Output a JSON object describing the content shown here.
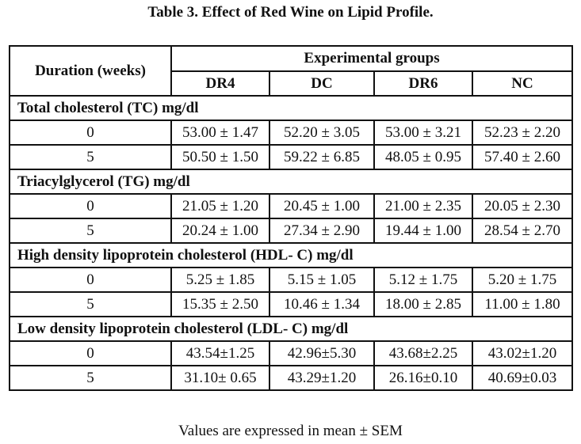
{
  "title": "Table 3. Effect of Red Wine on Lipid Profile.",
  "header": {
    "duration_label": "Duration (weeks)",
    "groups_label": "Experimental groups",
    "columns": [
      "DR4",
      "DC",
      "DR6",
      "NC"
    ]
  },
  "sections": [
    {
      "label": "Total cholesterol (TC) mg/dl",
      "rows": [
        {
          "duration": "0",
          "values": [
            "53.00 ± 1.47",
            "52.20 ± 3.05",
            "53.00 ± 3.21",
            "52.23 ± 2.20"
          ]
        },
        {
          "duration": "5",
          "values": [
            "50.50 ± 1.50",
            "59.22 ± 6.85",
            "48.05 ± 0.95",
            "57.40 ± 2.60"
          ]
        }
      ]
    },
    {
      "label": "Triacylglycerol (TG) mg/dl",
      "rows": [
        {
          "duration": "0",
          "values": [
            "21.05 ± 1.20",
            "20.45 ± 1.00",
            "21.00 ± 2.35",
            "20.05 ± 2.30"
          ]
        },
        {
          "duration": "5",
          "values": [
            "20.24 ± 1.00",
            "27.34 ± 2.90",
            "19.44 ± 1.00",
            "28.54 ± 2.70"
          ]
        }
      ]
    },
    {
      "label": "High density lipoprotein cholesterol (HDL- C) mg/dl",
      "rows": [
        {
          "duration": "0",
          "values": [
            "5.25 ± 1.85",
            "5.15 ± 1.05",
            "5.12 ± 1.75",
            "5.20 ± 1.75"
          ]
        },
        {
          "duration": "5",
          "values": [
            "15.35 ± 2.50",
            "10.46 ± 1.34",
            "18.00 ± 2.85",
            "11.00 ± 1.80"
          ]
        }
      ]
    },
    {
      "label": "Low density lipoprotein cholesterol (LDL- C) mg/dl",
      "rows": [
        {
          "duration": "0",
          "values": [
            "43.54±1.25",
            "42.96±5.30",
            "43.68±2.25",
            "43.02±1.20"
          ]
        },
        {
          "duration": "5",
          "values": [
            "31.10± 0.65",
            "43.29±1.20",
            "26.16±0.10",
            "40.69±0.03"
          ]
        }
      ]
    }
  ],
  "footnote": "Values are expressed in mean ± SEM"
}
